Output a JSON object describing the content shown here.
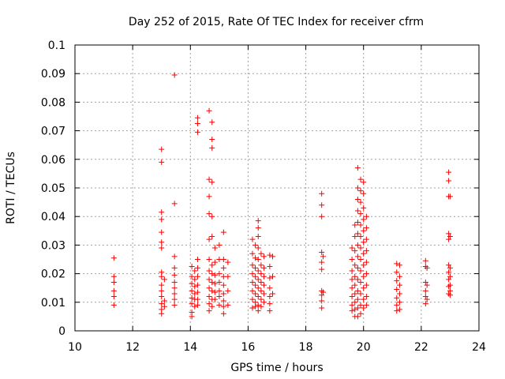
{
  "chart_data": {
    "type": "scatter",
    "title": "Day 252 of 2015, Rate Of TEC Index for receiver cfrm",
    "xlabel": "GPS time / hours",
    "ylabel": "ROTI / TECUs",
    "xlim": [
      10,
      24
    ],
    "ylim": [
      0,
      0.1
    ],
    "x_ticks": [
      "10",
      "12",
      "14",
      "16",
      "18",
      "20",
      "22",
      "24"
    ],
    "y_ticks": [
      "0",
      "0.01",
      "0.02",
      "0.03",
      "0.04",
      "0.05",
      "0.06",
      "0.07",
      "0.08",
      "0.09",
      "0.1"
    ],
    "grid": true,
    "marker": "+",
    "color": "#ff0000",
    "series": [
      {
        "points": [
          [
            11.35,
            0.0255
          ],
          [
            11.35,
            0.019
          ],
          [
            11.35,
            0.017
          ],
          [
            11.35,
            0.014
          ],
          [
            11.35,
            0.012
          ],
          [
            11.35,
            0.009
          ],
          [
            13.0,
            0.0635
          ],
          [
            13.0,
            0.059
          ],
          [
            13.0,
            0.0415
          ],
          [
            13.0,
            0.039
          ],
          [
            13.0,
            0.0345
          ],
          [
            13.0,
            0.031
          ],
          [
            13.0,
            0.029
          ],
          [
            13.0,
            0.0205
          ],
          [
            13.0,
            0.019
          ],
          [
            13.0,
            0.016
          ],
          [
            13.0,
            0.014
          ],
          [
            13.0,
            0.012
          ],
          [
            13.0,
            0.0095
          ],
          [
            13.0,
            0.0075
          ],
          [
            13.0,
            0.006
          ],
          [
            13.1,
            0.018
          ],
          [
            13.1,
            0.0105
          ],
          [
            13.1,
            0.0085
          ],
          [
            13.45,
            0.0895
          ],
          [
            13.45,
            0.0445
          ],
          [
            13.45,
            0.026
          ],
          [
            13.45,
            0.022
          ],
          [
            13.45,
            0.0195
          ],
          [
            13.45,
            0.017
          ],
          [
            13.45,
            0.015
          ],
          [
            13.45,
            0.013
          ],
          [
            13.45,
            0.011
          ],
          [
            13.45,
            0.009
          ],
          [
            14.05,
            0.0225
          ],
          [
            14.05,
            0.019
          ],
          [
            14.05,
            0.0165
          ],
          [
            14.05,
            0.014
          ],
          [
            14.05,
            0.0115
          ],
          [
            14.05,
            0.0095
          ],
          [
            14.05,
            0.0065
          ],
          [
            14.05,
            0.005
          ],
          [
            14.15,
            0.021
          ],
          [
            14.15,
            0.018
          ],
          [
            14.15,
            0.0155
          ],
          [
            14.15,
            0.013
          ],
          [
            14.15,
            0.011
          ],
          [
            14.15,
            0.0085
          ],
          [
            14.25,
            0.0745
          ],
          [
            14.25,
            0.0725
          ],
          [
            14.25,
            0.0695
          ],
          [
            14.25,
            0.025
          ],
          [
            14.25,
            0.022
          ],
          [
            14.25,
            0.019
          ],
          [
            14.25,
            0.016
          ],
          [
            14.25,
            0.0135
          ],
          [
            14.25,
            0.011
          ],
          [
            14.25,
            0.009
          ],
          [
            14.65,
            0.077
          ],
          [
            14.65,
            0.053
          ],
          [
            14.65,
            0.047
          ],
          [
            14.65,
            0.041
          ],
          [
            14.65,
            0.032
          ],
          [
            14.65,
            0.025
          ],
          [
            14.65,
            0.021
          ],
          [
            14.65,
            0.018
          ],
          [
            14.65,
            0.015
          ],
          [
            14.65,
            0.012
          ],
          [
            14.65,
            0.0095
          ],
          [
            14.65,
            0.007
          ],
          [
            14.75,
            0.073
          ],
          [
            14.75,
            0.067
          ],
          [
            14.75,
            0.064
          ],
          [
            14.75,
            0.052
          ],
          [
            14.75,
            0.04
          ],
          [
            14.75,
            0.033
          ],
          [
            14.75,
            0.023
          ],
          [
            14.75,
            0.02
          ],
          [
            14.75,
            0.017
          ],
          [
            14.75,
            0.014
          ],
          [
            14.75,
            0.011
          ],
          [
            14.75,
            0.0085
          ],
          [
            14.85,
            0.029
          ],
          [
            14.85,
            0.024
          ],
          [
            14.85,
            0.0195
          ],
          [
            14.85,
            0.0165
          ],
          [
            14.85,
            0.0135
          ],
          [
            14.85,
            0.011
          ],
          [
            15.0,
            0.03
          ],
          [
            15.0,
            0.025
          ],
          [
            15.0,
            0.02
          ],
          [
            15.0,
            0.017
          ],
          [
            15.0,
            0.014
          ],
          [
            15.0,
            0.012
          ],
          [
            15.0,
            0.009
          ],
          [
            15.15,
            0.0345
          ],
          [
            15.15,
            0.025
          ],
          [
            15.15,
            0.022
          ],
          [
            15.15,
            0.019
          ],
          [
            15.15,
            0.016
          ],
          [
            15.15,
            0.013
          ],
          [
            15.15,
            0.0105
          ],
          [
            15.15,
            0.0085
          ],
          [
            15.15,
            0.006
          ],
          [
            15.3,
            0.024
          ],
          [
            15.3,
            0.019
          ],
          [
            15.3,
            0.014
          ],
          [
            15.3,
            0.009
          ],
          [
            16.15,
            0.032
          ],
          [
            16.15,
            0.027
          ],
          [
            16.15,
            0.023
          ],
          [
            16.15,
            0.02
          ],
          [
            16.15,
            0.017
          ],
          [
            16.15,
            0.014
          ],
          [
            16.15,
            0.011
          ],
          [
            16.15,
            0.008
          ],
          [
            16.25,
            0.03
          ],
          [
            16.25,
            0.0255
          ],
          [
            16.25,
            0.022
          ],
          [
            16.25,
            0.019
          ],
          [
            16.25,
            0.016
          ],
          [
            16.25,
            0.013
          ],
          [
            16.25,
            0.01
          ],
          [
            16.25,
            0.0085
          ],
          [
            16.35,
            0.0385
          ],
          [
            16.35,
            0.036
          ],
          [
            16.35,
            0.033
          ],
          [
            16.35,
            0.029
          ],
          [
            16.35,
            0.025
          ],
          [
            16.35,
            0.021
          ],
          [
            16.35,
            0.018
          ],
          [
            16.35,
            0.015
          ],
          [
            16.35,
            0.012
          ],
          [
            16.35,
            0.009
          ],
          [
            16.35,
            0.007
          ],
          [
            16.45,
            0.027
          ],
          [
            16.45,
            0.023
          ],
          [
            16.45,
            0.02
          ],
          [
            16.45,
            0.017
          ],
          [
            16.45,
            0.014
          ],
          [
            16.45,
            0.011
          ],
          [
            16.45,
            0.0085
          ],
          [
            16.55,
            0.026
          ],
          [
            16.55,
            0.022
          ],
          [
            16.55,
            0.019
          ],
          [
            16.55,
            0.016
          ],
          [
            16.55,
            0.013
          ],
          [
            16.55,
            0.01
          ],
          [
            16.75,
            0.0265
          ],
          [
            16.75,
            0.0225
          ],
          [
            16.75,
            0.0185
          ],
          [
            16.75,
            0.015
          ],
          [
            16.75,
            0.012
          ],
          [
            16.75,
            0.0095
          ],
          [
            16.75,
            0.007
          ],
          [
            16.85,
            0.026
          ],
          [
            16.85,
            0.019
          ],
          [
            16.85,
            0.013
          ],
          [
            18.55,
            0.048
          ],
          [
            18.55,
            0.044
          ],
          [
            18.55,
            0.04
          ],
          [
            18.55,
            0.0275
          ],
          [
            18.55,
            0.024
          ],
          [
            18.55,
            0.0215
          ],
          [
            18.55,
            0.014
          ],
          [
            18.55,
            0.0125
          ],
          [
            18.55,
            0.0105
          ],
          [
            18.55,
            0.008
          ],
          [
            18.6,
            0.026
          ],
          [
            18.6,
            0.0135
          ],
          [
            19.6,
            0.029
          ],
          [
            19.6,
            0.025
          ],
          [
            19.6,
            0.021
          ],
          [
            19.6,
            0.018
          ],
          [
            19.6,
            0.015
          ],
          [
            19.6,
            0.012
          ],
          [
            19.6,
            0.009
          ],
          [
            19.6,
            0.007
          ],
          [
            19.7,
            0.037
          ],
          [
            19.7,
            0.033
          ],
          [
            19.7,
            0.028
          ],
          [
            19.7,
            0.023
          ],
          [
            19.7,
            0.019
          ],
          [
            19.7,
            0.016
          ],
          [
            19.7,
            0.013
          ],
          [
            19.7,
            0.01
          ],
          [
            19.7,
            0.0075
          ],
          [
            19.7,
            0.005
          ],
          [
            19.8,
            0.057
          ],
          [
            19.8,
            0.05
          ],
          [
            19.8,
            0.046
          ],
          [
            19.8,
            0.042
          ],
          [
            19.8,
            0.038
          ],
          [
            19.8,
            0.034
          ],
          [
            19.8,
            0.03
          ],
          [
            19.8,
            0.026
          ],
          [
            19.8,
            0.022
          ],
          [
            19.8,
            0.018
          ],
          [
            19.8,
            0.014
          ],
          [
            19.8,
            0.011
          ],
          [
            19.8,
            0.008
          ],
          [
            19.8,
            0.005
          ],
          [
            19.9,
            0.053
          ],
          [
            19.9,
            0.049
          ],
          [
            19.9,
            0.045
          ],
          [
            19.9,
            0.041
          ],
          [
            19.9,
            0.037
          ],
          [
            19.9,
            0.033
          ],
          [
            19.9,
            0.029
          ],
          [
            19.9,
            0.025
          ],
          [
            19.9,
            0.021
          ],
          [
            19.9,
            0.017
          ],
          [
            19.9,
            0.013
          ],
          [
            19.9,
            0.009
          ],
          [
            19.9,
            0.006
          ],
          [
            20.0,
            0.052
          ],
          [
            20.0,
            0.048
          ],
          [
            20.0,
            0.043
          ],
          [
            20.0,
            0.039
          ],
          [
            20.0,
            0.035
          ],
          [
            20.0,
            0.031
          ],
          [
            20.0,
            0.027
          ],
          [
            20.0,
            0.023
          ],
          [
            20.0,
            0.019
          ],
          [
            20.0,
            0.015
          ],
          [
            20.0,
            0.011
          ],
          [
            20.0,
            0.008
          ],
          [
            20.1,
            0.04
          ],
          [
            20.1,
            0.036
          ],
          [
            20.1,
            0.032
          ],
          [
            20.1,
            0.028
          ],
          [
            20.1,
            0.024
          ],
          [
            20.1,
            0.02
          ],
          [
            20.1,
            0.016
          ],
          [
            20.1,
            0.012
          ],
          [
            20.1,
            0.009
          ],
          [
            21.15,
            0.0235
          ],
          [
            21.15,
            0.0205
          ],
          [
            21.15,
            0.0175
          ],
          [
            21.15,
            0.0145
          ],
          [
            21.15,
            0.0115
          ],
          [
            21.15,
            0.009
          ],
          [
            21.15,
            0.007
          ],
          [
            21.25,
            0.023
          ],
          [
            21.25,
            0.019
          ],
          [
            21.25,
            0.016
          ],
          [
            21.25,
            0.013
          ],
          [
            21.25,
            0.01
          ],
          [
            21.25,
            0.0075
          ],
          [
            22.15,
            0.0245
          ],
          [
            22.15,
            0.0225
          ],
          [
            22.15,
            0.017
          ],
          [
            22.15,
            0.014
          ],
          [
            22.15,
            0.012
          ],
          [
            22.15,
            0.0095
          ],
          [
            22.2,
            0.022
          ],
          [
            22.2,
            0.016
          ],
          [
            22.2,
            0.011
          ],
          [
            22.95,
            0.0555
          ],
          [
            22.95,
            0.0525
          ],
          [
            22.95,
            0.047
          ],
          [
            22.95,
            0.034
          ],
          [
            22.95,
            0.032
          ],
          [
            22.95,
            0.023
          ],
          [
            22.95,
            0.0205
          ],
          [
            22.95,
            0.018
          ],
          [
            22.95,
            0.0155
          ],
          [
            22.95,
            0.013
          ],
          [
            23.0,
            0.047
          ],
          [
            23.0,
            0.033
          ],
          [
            23.0,
            0.022
          ],
          [
            23.0,
            0.019
          ],
          [
            23.0,
            0.016
          ],
          [
            23.0,
            0.014
          ],
          [
            23.0,
            0.0125
          ]
        ]
      }
    ]
  }
}
